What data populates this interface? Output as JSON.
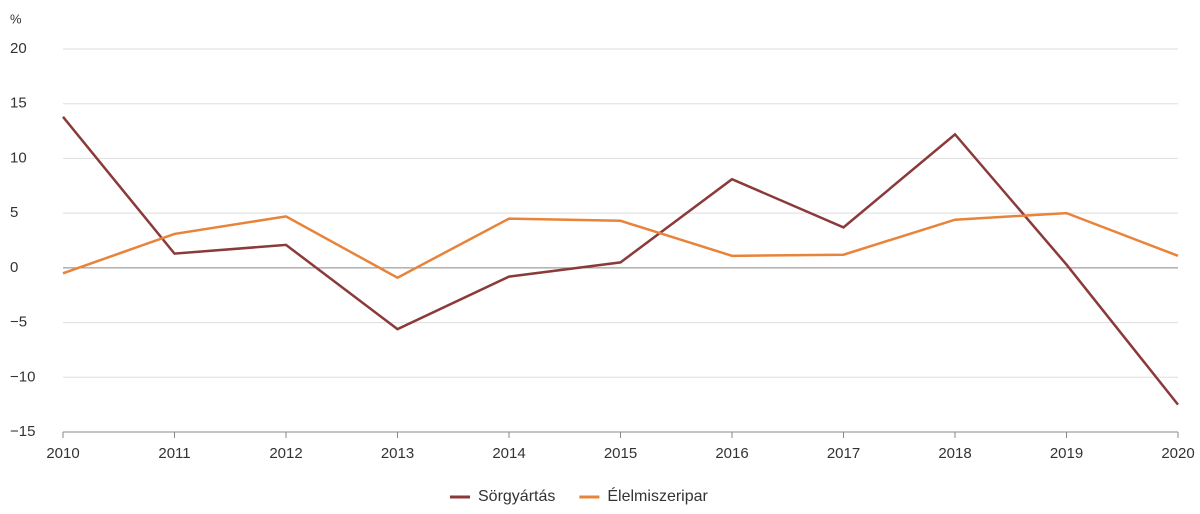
{
  "chart_data": {
    "type": "line",
    "ylabel": "%",
    "x": [
      2010,
      2011,
      2012,
      2013,
      2014,
      2015,
      2016,
      2017,
      2018,
      2019,
      2020
    ],
    "xlim": [
      2010,
      2020
    ],
    "xticks": [
      2010,
      2011,
      2012,
      2013,
      2014,
      2015,
      2016,
      2017,
      2018,
      2019,
      2020
    ],
    "ylim": [
      -15,
      20
    ],
    "yticks": [
      {
        "value": -15,
        "label": "−15"
      },
      {
        "value": -10,
        "label": "−10"
      },
      {
        "value": -5,
        "label": "−5"
      },
      0,
      5,
      10,
      15,
      20
    ],
    "grid": true,
    "legend": "bottom",
    "series": [
      {
        "name": "Sörgyártás",
        "color": "#8b3a3a",
        "values": [
          13.8,
          1.3,
          2.1,
          -5.6,
          -0.8,
          0.5,
          8.1,
          3.7,
          12.2,
          0.3,
          -12.5
        ]
      },
      {
        "name": "Élelmiszeripar",
        "color": "#e8833a",
        "values": [
          -0.5,
          3.1,
          4.7,
          -0.9,
          4.5,
          4.3,
          1.1,
          1.2,
          4.4,
          5.0,
          1.1
        ]
      }
    ]
  }
}
